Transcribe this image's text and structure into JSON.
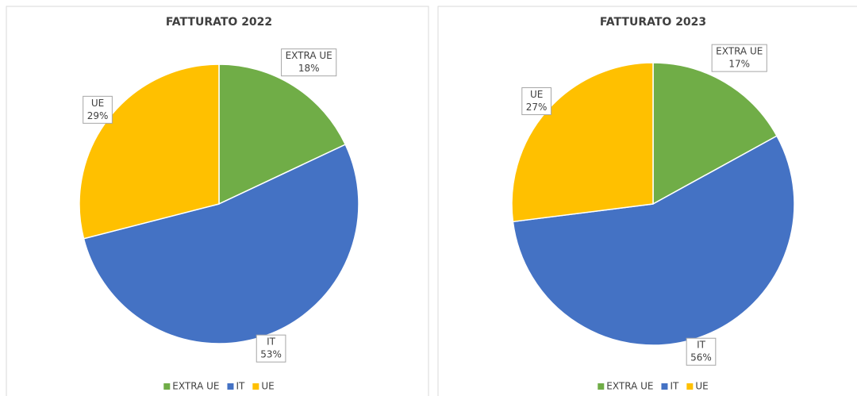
{
  "chart_data": [
    {
      "type": "pie",
      "title": "FATTURATO 2022",
      "categories": [
        "EXTRA UE",
        "IT",
        "UE"
      ],
      "values": [
        18,
        53,
        29
      ],
      "value_labels": [
        "18%",
        "53%",
        "29%"
      ],
      "colors": [
        "#70ad47",
        "#4472c4",
        "#ffc000"
      ],
      "legend": "bottom"
    },
    {
      "type": "pie",
      "title": "FATTURATO 2023",
      "categories": [
        "EXTRA UE",
        "IT",
        "UE"
      ],
      "values": [
        17,
        56,
        27
      ],
      "value_labels": [
        "17%",
        "56%",
        "27%"
      ],
      "colors": [
        "#70ad47",
        "#4472c4",
        "#ffc000"
      ],
      "legend": "bottom"
    }
  ]
}
